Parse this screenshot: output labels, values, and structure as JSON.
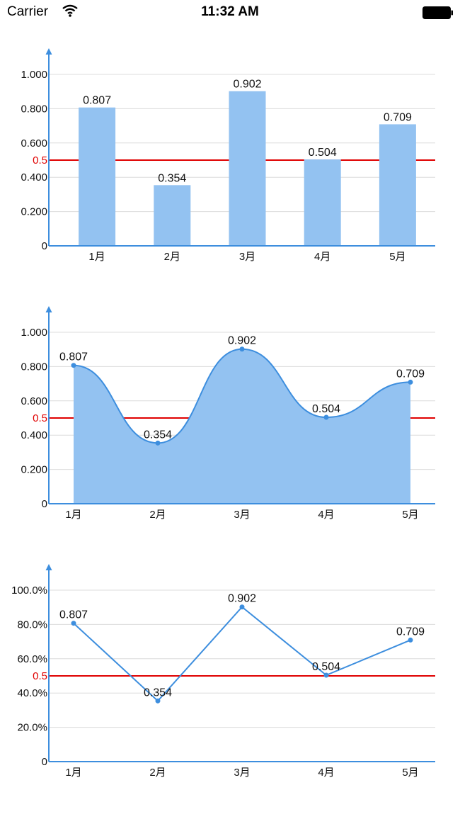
{
  "status_bar": {
    "carrier": "Carrier",
    "time": "11:32 AM",
    "icons": [
      "wifi-icon",
      "battery-icon"
    ]
  },
  "colors": {
    "bar_fill": "#93c2f1",
    "area_fill": "#93c2f1",
    "line": "#3d8ede",
    "axis": "#3d8ede",
    "grid": "#dcdcdc",
    "reference_line": "#e00000"
  },
  "chart_data": [
    {
      "type": "bar",
      "categories": [
        "1月",
        "2月",
        "3月",
        "4月",
        "5月"
      ],
      "values": [
        0.807,
        0.354,
        0.902,
        0.504,
        0.709
      ],
      "value_labels": [
        "0.807",
        "0.354",
        "0.902",
        "0.504",
        "0.709"
      ],
      "y_ticks": [
        0,
        0.2,
        0.4,
        0.6,
        0.8,
        1.0
      ],
      "y_tick_labels": [
        "0",
        "0.200",
        "0.400",
        "0.600",
        "0.800",
        "1.000"
      ],
      "ylim": [
        0,
        1.0
      ],
      "reference_line": {
        "value": 0.5,
        "label": "0.5"
      },
      "grid": true
    },
    {
      "type": "area",
      "categories": [
        "1月",
        "2月",
        "3月",
        "4月",
        "5月"
      ],
      "values": [
        0.807,
        0.354,
        0.902,
        0.504,
        0.709
      ],
      "value_labels": [
        "0.807",
        "0.354",
        "0.902",
        "0.504",
        "0.709"
      ],
      "y_ticks": [
        0,
        0.2,
        0.4,
        0.6,
        0.8,
        1.0
      ],
      "y_tick_labels": [
        "0",
        "0.200",
        "0.400",
        "0.600",
        "0.800",
        "1.000"
      ],
      "ylim": [
        0,
        1.0
      ],
      "curve": "smooth",
      "reference_line": {
        "value": 0.5,
        "label": "0.5"
      },
      "grid": true
    },
    {
      "type": "line",
      "categories": [
        "1月",
        "2月",
        "3月",
        "4月",
        "5月"
      ],
      "values": [
        0.807,
        0.354,
        0.902,
        0.504,
        0.709
      ],
      "value_labels": [
        "0.807",
        "0.354",
        "0.902",
        "0.504",
        "0.709"
      ],
      "y_ticks": [
        0,
        0.2,
        0.4,
        0.6,
        0.8,
        1.0
      ],
      "y_tick_labels": [
        "0",
        "20.0%",
        "40.0%",
        "60.0%",
        "80.0%",
        "100.0%"
      ],
      "ylim": [
        0,
        1.0
      ],
      "curve": "straight",
      "reference_line": {
        "value": 0.5,
        "label": "0.5"
      },
      "grid": true
    }
  ]
}
